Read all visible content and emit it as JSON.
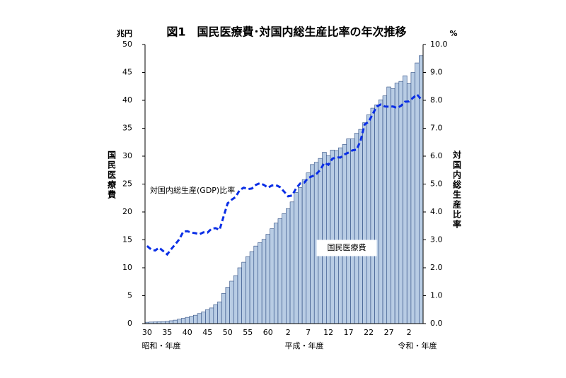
{
  "chart_data": {
    "type": "bar-line",
    "title": "図1　国民医療費･対国内総生産比率の年次推移",
    "y_unit": "兆円",
    "y2_unit": "%",
    "y_label": "国民医療費",
    "y2_label": "対国内総生産比率",
    "era_labels": [
      "昭和・年度",
      "平成・年度",
      "令和・年度"
    ],
    "categories": [
      "30",
      null,
      null,
      null,
      null,
      "35",
      null,
      null,
      null,
      null,
      "40",
      null,
      null,
      null,
      null,
      "45",
      null,
      null,
      null,
      null,
      "50",
      null,
      null,
      null,
      null,
      "55",
      null,
      null,
      null,
      null,
      "60",
      null,
      null,
      null,
      null,
      "2",
      null,
      null,
      null,
      null,
      "7",
      null,
      null,
      null,
      null,
      "12",
      null,
      null,
      null,
      null,
      "17",
      null,
      null,
      null,
      null,
      "22",
      null,
      null,
      null,
      null,
      "27",
      null,
      null,
      null,
      null,
      "2",
      null,
      null,
      null
    ],
    "series": [
      {
        "name": "国民医療費",
        "color": "#b8cce4",
        "values": [
          0.24,
          0.28,
          0.31,
          0.34,
          0.37,
          0.41,
          0.51,
          0.62,
          0.79,
          0.94,
          1.12,
          1.3,
          1.5,
          1.8,
          2.1,
          2.5,
          2.8,
          3.4,
          3.9,
          5.4,
          6.5,
          7.6,
          8.6,
          10.0,
          11.0,
          12.0,
          12.9,
          13.9,
          14.5,
          15.1,
          16.0,
          17.0,
          18.0,
          18.8,
          19.7,
          20.6,
          21.8,
          23.5,
          24.4,
          25.8,
          27.0,
          28.5,
          28.9,
          29.6,
          30.7,
          30.1,
          31.1,
          31.0,
          31.5,
          32.1,
          33.1,
          33.1,
          34.1,
          34.8,
          36.0,
          37.4,
          38.6,
          39.2,
          40.1,
          40.8,
          42.4,
          42.1,
          43.1,
          43.4,
          44.4,
          43.0,
          45.0,
          46.7,
          48.0
        ]
      },
      {
        "name": "対国内総生産(GDP)比率",
        "color": "#0a2ee6",
        "axis": "y2",
        "values": [
          2.78,
          2.66,
          2.62,
          2.72,
          2.6,
          2.48,
          2.67,
          2.84,
          3.02,
          3.3,
          3.31,
          3.26,
          3.24,
          3.2,
          3.27,
          3.26,
          3.4,
          3.42,
          3.36,
          3.84,
          4.31,
          4.44,
          4.54,
          4.79,
          4.87,
          4.82,
          4.84,
          4.97,
          5.03,
          4.97,
          4.87,
          4.95,
          4.96,
          4.89,
          4.73,
          4.56,
          4.59,
          4.85,
          5.02,
          5.05,
          5.22,
          5.28,
          5.36,
          5.51,
          5.76,
          5.69,
          5.91,
          5.96,
          5.95,
          6.06,
          6.13,
          6.21,
          6.23,
          6.56,
          7.14,
          7.23,
          7.51,
          7.78,
          7.85,
          7.78,
          7.77,
          7.78,
          7.73,
          7.8,
          7.95,
          7.96,
          8.09,
          8.21,
          8.04
        ]
      }
    ],
    "ylim": [
      0,
      50
    ],
    "yticks": [
      0,
      5,
      10,
      15,
      20,
      25,
      30,
      35,
      40,
      45,
      50
    ],
    "y2lim": [
      0,
      10
    ],
    "y2ticks": [
      {
        "value": 0,
        "label": "0.0"
      },
      {
        "value": 1,
        "label": "1.0"
      },
      {
        "value": 2,
        "label": "2.0"
      },
      {
        "value": 3,
        "label": "3.0"
      },
      {
        "value": 4,
        "label": "4.0"
      },
      {
        "value": 5,
        "label": "5.0"
      },
      {
        "value": 6,
        "label": "6.0"
      },
      {
        "value": 7,
        "label": "7.0"
      },
      {
        "value": 8,
        "label": "8.0"
      },
      {
        "value": 9,
        "label": "9.0"
      },
      {
        "value": 10,
        "label": "10.0"
      }
    ]
  }
}
